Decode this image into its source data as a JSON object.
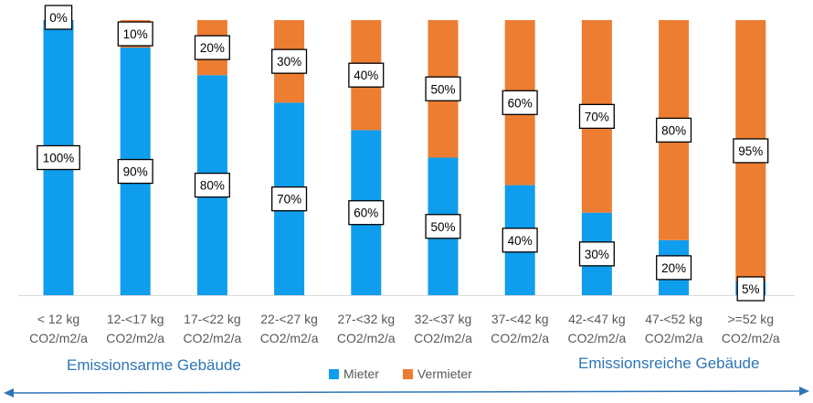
{
  "chart_data": {
    "type": "bar",
    "stacked": true,
    "percent": true,
    "categories": [
      [
        "< 12 kg",
        "CO2/m2/a"
      ],
      [
        "12-<17 kg",
        "CO2/m2/a"
      ],
      [
        "17-<22 kg",
        "CO2/m2/a"
      ],
      [
        "22-<27 kg",
        "CO2/m2/a"
      ],
      [
        "27-<32 kg",
        "CO2/m2/a"
      ],
      [
        "32-<37 kg",
        "CO2/m2/a"
      ],
      [
        "37-<42 kg",
        "CO2/m2/a"
      ],
      [
        "42-<47 kg",
        "CO2/m2/a"
      ],
      [
        "47-<52 kg",
        "CO2/m2/a"
      ],
      [
        ">=52 kg",
        "CO2/m2/a"
      ]
    ],
    "series": [
      {
        "name": "Mieter",
        "color": "#0f9ded",
        "values": [
          100,
          90,
          80,
          70,
          60,
          50,
          40,
          30,
          20,
          5
        ]
      },
      {
        "name": "Vermieter",
        "color": "#ed7d31",
        "values": [
          0,
          10,
          20,
          30,
          40,
          50,
          60,
          70,
          80,
          95
        ]
      }
    ],
    "ylim": [
      0,
      100
    ],
    "grid": false,
    "legend": "bottom"
  },
  "footer": {
    "left_label": "Emissionsarme Gebäude",
    "right_label": "Emissionsreiche Gebäude",
    "arrow_color": "#2e75b6"
  }
}
